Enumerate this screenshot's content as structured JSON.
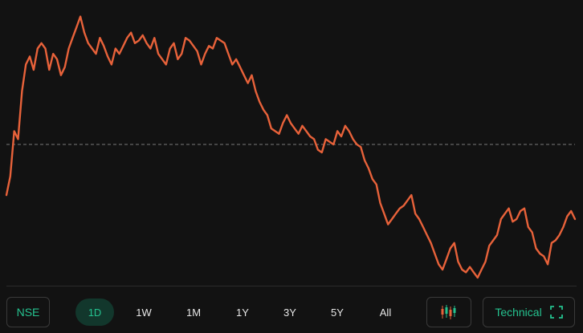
{
  "chart_data": {
    "type": "line",
    "title": "",
    "xlabel": "",
    "ylabel": "",
    "grid": false,
    "line_color": "#e8623a",
    "reference_line": {
      "value": 50,
      "style": "dashed",
      "color": "#7a7a7a"
    },
    "ylim": [
      0,
      100
    ],
    "series": [
      {
        "values": [
          31,
          38,
          55,
          52,
          70,
          80,
          83,
          78,
          86,
          88,
          86,
          78,
          84,
          82,
          76,
          79,
          86,
          90,
          94,
          98,
          92,
          88,
          86,
          84,
          90,
          87,
          83,
          80,
          86,
          84,
          87,
          90,
          92,
          88,
          89,
          91,
          88,
          86,
          90,
          84,
          82,
          80,
          86,
          88,
          82,
          84,
          90,
          89,
          87,
          85,
          80,
          84,
          87,
          86,
          90,
          89,
          88,
          84,
          80,
          82,
          79,
          76,
          73,
          76,
          70,
          66,
          63,
          61,
          56,
          55,
          54,
          58,
          61,
          58,
          56,
          54,
          57,
          55,
          53,
          52,
          48,
          47,
          52,
          51,
          50,
          55,
          53,
          57,
          55,
          52,
          50,
          49,
          44,
          41,
          37,
          35,
          28,
          24,
          20,
          22,
          24,
          26,
          27,
          29,
          31,
          24,
          22,
          19,
          16,
          13,
          9,
          5,
          3,
          7,
          11,
          13,
          6,
          3,
          2,
          4,
          2,
          0,
          3,
          6,
          12,
          14,
          16,
          22,
          24,
          26,
          21,
          22,
          25,
          26,
          19,
          17,
          11,
          9,
          8,
          5,
          13,
          14,
          16,
          19,
          23,
          25,
          22
        ]
      }
    ]
  },
  "toolbar": {
    "exchange_label": "NSE",
    "ranges": [
      {
        "label": "1D",
        "active": true
      },
      {
        "label": "1W",
        "active": false
      },
      {
        "label": "1M",
        "active": false
      },
      {
        "label": "1Y",
        "active": false
      },
      {
        "label": "3Y",
        "active": false
      },
      {
        "label": "5Y",
        "active": false
      },
      {
        "label": "All",
        "active": false
      }
    ],
    "candles_icon": "candlestick-chart-icon",
    "technical_label": "Technical",
    "expand_icon": "fullscreen-expand-icon"
  },
  "colors": {
    "background": "#121212",
    "accent": "#25c28f",
    "active_pill": "#12372c",
    "candle_red": "#e8623a",
    "candle_green": "#25c28f"
  }
}
